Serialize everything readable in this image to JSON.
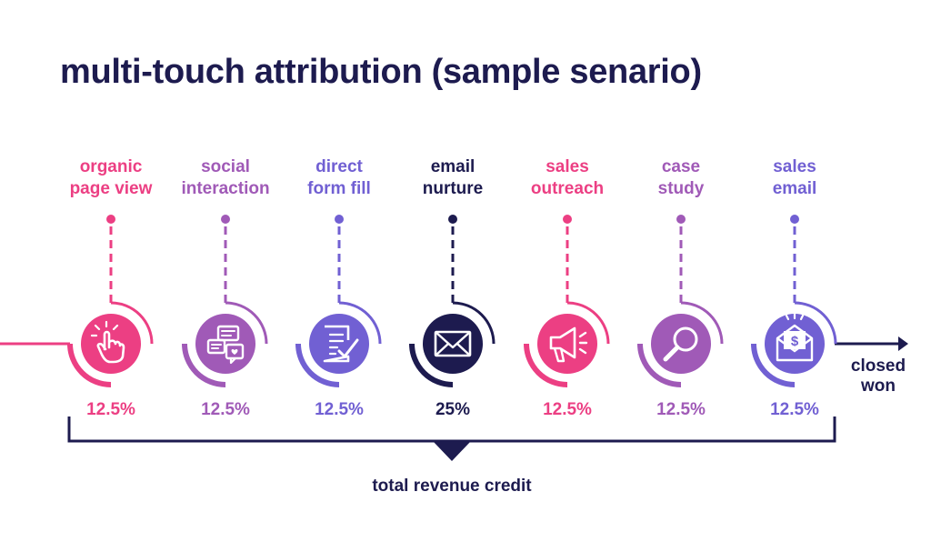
{
  "title": "multi-touch attribution (sample senario)",
  "colors": {
    "navy": "#1d1b4f",
    "pink": "#ec3f83",
    "purple": "#a05ab7",
    "violet": "#7160d3"
  },
  "stages": [
    {
      "line1": "organic",
      "line2": "page view",
      "percent": "12.5%",
      "color": "#ec3f83",
      "icon": "click-hand-icon"
    },
    {
      "line1": "social",
      "line2": "interaction",
      "percent": "12.5%",
      "color": "#a05ab7",
      "icon": "chat-bubbles-icon"
    },
    {
      "line1": "direct",
      "line2": "form fill",
      "percent": "12.5%",
      "color": "#7160d3",
      "icon": "form-checklist-icon"
    },
    {
      "line1": "email",
      "line2": "nurture",
      "percent": "25%",
      "color": "#1d1b4f",
      "icon": "envelope-icon"
    },
    {
      "line1": "sales",
      "line2": "outreach",
      "percent": "12.5%",
      "color": "#ec3f83",
      "icon": "megaphone-icon"
    },
    {
      "line1": "case",
      "line2": "study",
      "percent": "12.5%",
      "color": "#a05ab7",
      "icon": "magnifier-icon"
    },
    {
      "line1": "sales",
      "line2": "email",
      "percent": "12.5%",
      "color": "#7160d3",
      "icon": "money-envelope-icon"
    }
  ],
  "closed_won": {
    "line1": "closed",
    "line2": "won"
  },
  "total_label": "total revenue credit"
}
